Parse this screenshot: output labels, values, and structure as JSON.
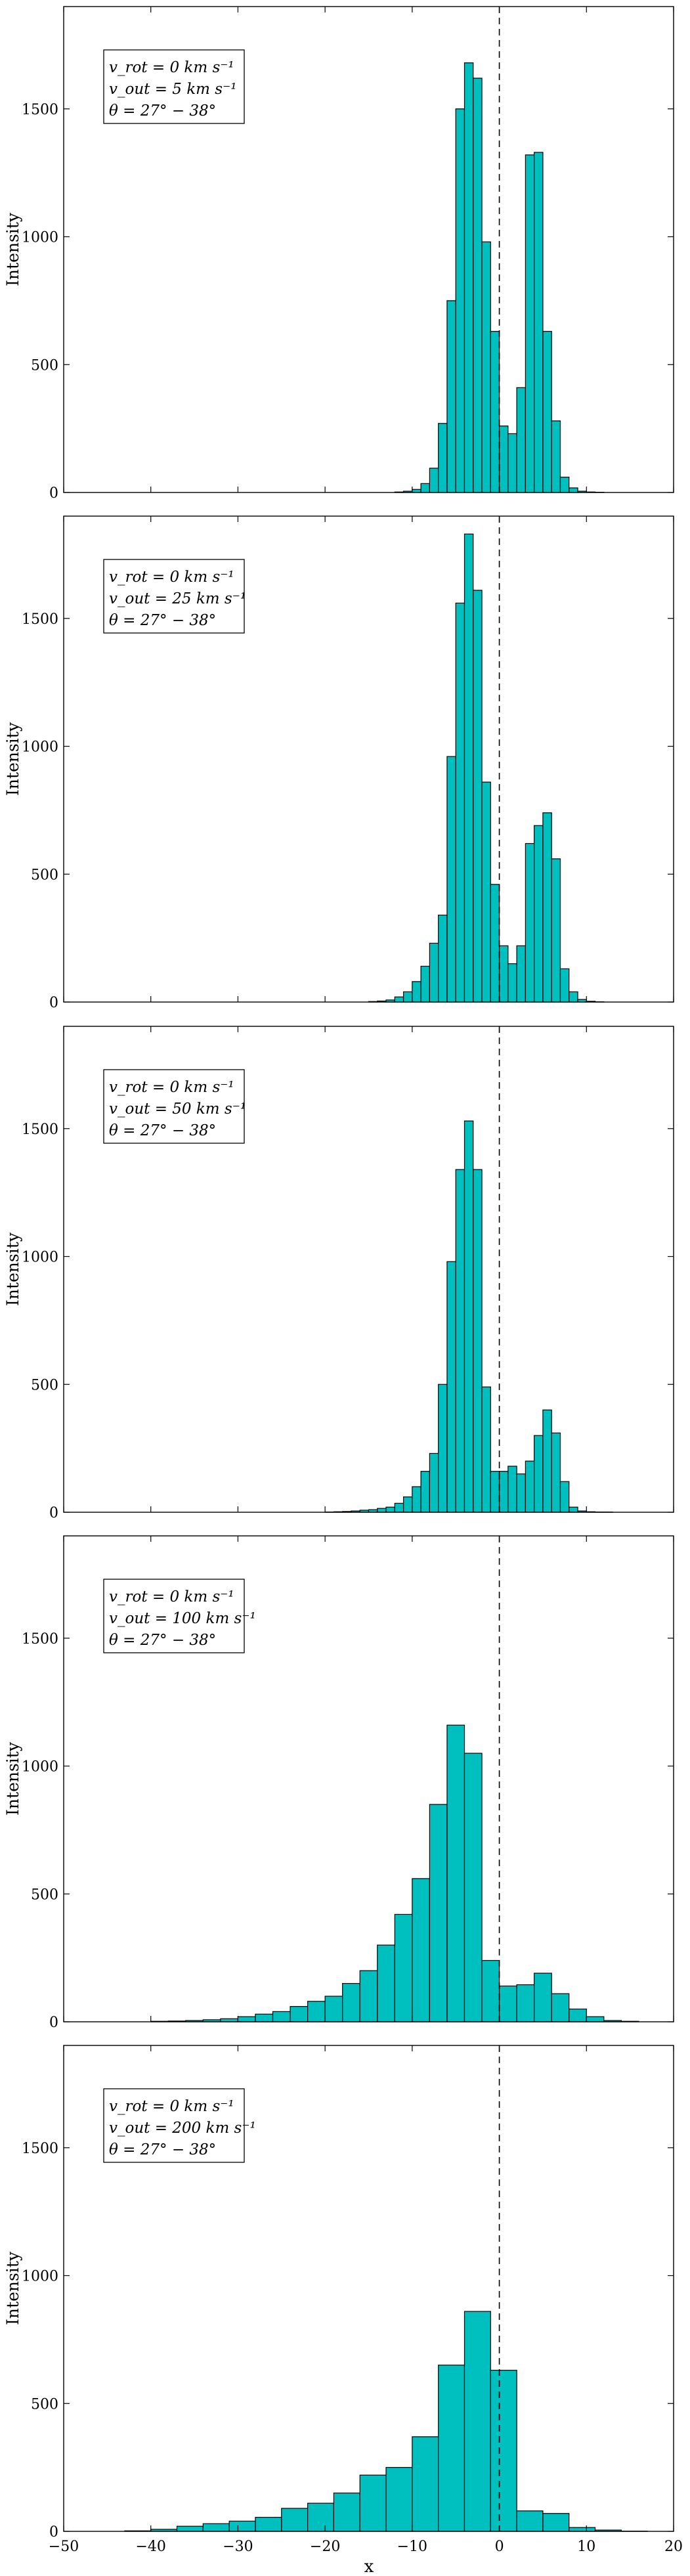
{
  "figure": {
    "xlabel": "x",
    "xlim": [
      -50,
      20
    ],
    "xticks": [
      -50,
      -40,
      -30,
      -20,
      -10,
      0,
      10,
      20
    ],
    "ylim": [
      0,
      1900
    ],
    "yticks": [
      0,
      500,
      1000,
      1500
    ],
    "ylabel": "Intensity",
    "bar_color": "#00bfbf",
    "edge_color": "#000000",
    "reference_line_x": 0
  },
  "chart_data": [
    {
      "type": "bar",
      "legend": [
        "v_rot = 0 km s⁻¹",
        "v_out = 5 km s⁻¹",
        "θ = 27° − 38°"
      ],
      "bin_width": 1,
      "bin_left": [
        -12,
        -11,
        -10,
        -9,
        -8,
        -7,
        -6,
        -5,
        -4,
        -3,
        -2,
        -1,
        0,
        1,
        2,
        3,
        4,
        5,
        6,
        7,
        8,
        9,
        10,
        11
      ],
      "values": [
        2,
        5,
        12,
        35,
        95,
        270,
        750,
        1500,
        1680,
        1620,
        980,
        630,
        260,
        230,
        410,
        1320,
        1330,
        630,
        280,
        60,
        18,
        5,
        2,
        1
      ]
    },
    {
      "type": "bar",
      "legend": [
        "v_rot = 0 km s⁻¹",
        "v_out = 25 km s⁻¹",
        "θ = 27° − 38°"
      ],
      "bin_width": 1,
      "bin_left": [
        -15,
        -14,
        -13,
        -12,
        -11,
        -10,
        -9,
        -8,
        -7,
        -6,
        -5,
        -4,
        -3,
        -2,
        -1,
        0,
        1,
        2,
        3,
        4,
        5,
        6,
        7,
        8,
        9,
        10,
        11
      ],
      "values": [
        2,
        4,
        8,
        20,
        40,
        80,
        140,
        230,
        340,
        960,
        1560,
        1830,
        1610,
        860,
        460,
        220,
        150,
        220,
        620,
        690,
        740,
        560,
        130,
        40,
        10,
        3,
        1
      ]
    },
    {
      "type": "bar",
      "legend": [
        "v_rot = 0 km s⁻¹",
        "v_out = 50 km s⁻¹",
        "θ = 27° − 38°"
      ],
      "bin_width": 1,
      "bin_left": [
        -20,
        -19,
        -18,
        -17,
        -16,
        -15,
        -14,
        -13,
        -12,
        -11,
        -10,
        -9,
        -8,
        -7,
        -6,
        -5,
        -4,
        -3,
        -2,
        -1,
        0,
        1,
        2,
        3,
        4,
        5,
        6,
        7,
        8,
        9,
        10,
        11,
        12
      ],
      "values": [
        1,
        2,
        3,
        5,
        8,
        10,
        15,
        20,
        35,
        60,
        100,
        160,
        230,
        500,
        980,
        1340,
        1530,
        1340,
        490,
        160,
        160,
        180,
        150,
        200,
        300,
        400,
        310,
        120,
        20,
        5,
        2,
        1,
        1
      ]
    },
    {
      "type": "bar",
      "legend": [
        "v_rot = 0 km s⁻¹",
        "v_out = 100 km s⁻¹",
        "θ = 27° − 38°"
      ],
      "bin_width": 2,
      "bin_left": [
        -40,
        -38,
        -36,
        -34,
        -32,
        -30,
        -28,
        -26,
        -24,
        -22,
        -20,
        -18,
        -16,
        -14,
        -12,
        -10,
        -8,
        -6,
        -4,
        -2,
        0,
        2,
        4,
        6,
        8,
        10,
        12,
        14
      ],
      "values": [
        2,
        3,
        5,
        8,
        12,
        20,
        30,
        40,
        60,
        80,
        100,
        150,
        200,
        300,
        420,
        560,
        850,
        1160,
        1050,
        240,
        140,
        145,
        190,
        110,
        50,
        20,
        5,
        2
      ]
    },
    {
      "type": "bar",
      "legend": [
        "v_rot = 0 km s⁻¹",
        "v_out = 200 km s⁻¹",
        "θ = 27° − 38°"
      ],
      "bin_width": 3,
      "bin_left": [
        -43,
        -40,
        -37,
        -34,
        -31,
        -28,
        -25,
        -22,
        -19,
        -16,
        -13,
        -10,
        -7,
        -4,
        -1,
        2,
        5,
        8,
        11,
        14
      ],
      "values": [
        2,
        8,
        20,
        30,
        40,
        55,
        90,
        110,
        150,
        220,
        250,
        370,
        650,
        860,
        630,
        80,
        70,
        15,
        5,
        1
      ]
    }
  ]
}
